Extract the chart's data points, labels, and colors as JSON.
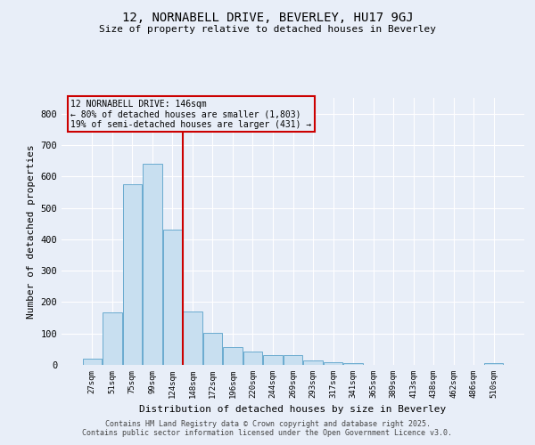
{
  "title": "12, NORNABELL DRIVE, BEVERLEY, HU17 9GJ",
  "subtitle": "Size of property relative to detached houses in Beverley",
  "xlabel": "Distribution of detached houses by size in Beverley",
  "ylabel": "Number of detached properties",
  "categories": [
    "27sqm",
    "51sqm",
    "75sqm",
    "99sqm",
    "124sqm",
    "148sqm",
    "172sqm",
    "196sqm",
    "220sqm",
    "244sqm",
    "269sqm",
    "293sqm",
    "317sqm",
    "341sqm",
    "365sqm",
    "389sqm",
    "413sqm",
    "438sqm",
    "462sqm",
    "486sqm",
    "510sqm"
  ],
  "values": [
    20,
    167,
    575,
    640,
    430,
    170,
    103,
    57,
    43,
    32,
    32,
    13,
    8,
    5,
    0,
    0,
    0,
    0,
    0,
    0,
    5
  ],
  "bar_color": "#c8dff0",
  "bar_edge_color": "#6aabcf",
  "red_line_x": 5,
  "annotation_title": "12 NORNABELL DRIVE: 146sqm",
  "annotation_line2": "← 80% of detached houses are smaller (1,803)",
  "annotation_line3": "19% of semi-detached houses are larger (431) →",
  "annotation_box_color": "#cc0000",
  "ylim": [
    0,
    850
  ],
  "yticks": [
    0,
    100,
    200,
    300,
    400,
    500,
    600,
    700,
    800
  ],
  "bg_color": "#e8eef8",
  "grid_color": "#ffffff",
  "footer1": "Contains HM Land Registry data © Crown copyright and database right 2025.",
  "footer2": "Contains public sector information licensed under the Open Government Licence v3.0."
}
